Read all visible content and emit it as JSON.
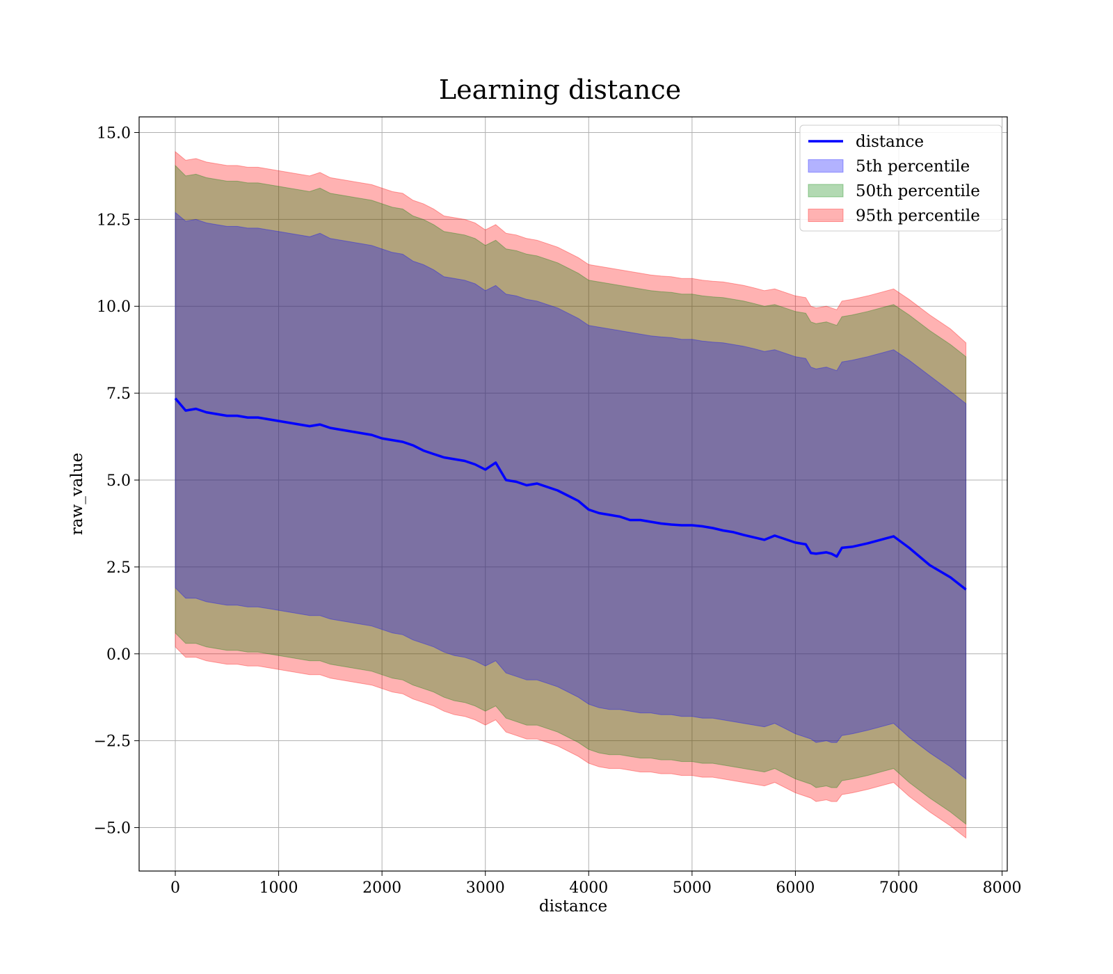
{
  "chart_data": {
    "type": "line",
    "title": "Learning distance",
    "xlabel": "distance",
    "ylabel": "raw_value",
    "xlim": [
      -350,
      8050
    ],
    "ylim": [
      -6.25,
      15.45
    ],
    "xticks": [
      0,
      1000,
      2000,
      3000,
      4000,
      5000,
      6000,
      7000,
      8000
    ],
    "xtick_labels": [
      "0",
      "1000",
      "2000",
      "3000",
      "4000",
      "5000",
      "6000",
      "7000",
      "8000"
    ],
    "yticks": [
      -5.0,
      -2.5,
      0.0,
      2.5,
      5.0,
      7.5,
      10.0,
      12.5,
      15.0
    ],
    "ytick_labels": [
      "−5.0",
      "−2.5",
      "0.0",
      "2.5",
      "5.0",
      "7.5",
      "10.0",
      "12.5",
      "15.0"
    ],
    "grid": true,
    "legend_position": "top-right",
    "x": [
      0,
      100,
      200,
      300,
      400,
      500,
      600,
      700,
      800,
      900,
      1000,
      1100,
      1200,
      1300,
      1400,
      1500,
      1600,
      1700,
      1800,
      1900,
      2000,
      2100,
      2200,
      2300,
      2400,
      2500,
      2600,
      2700,
      2800,
      2900,
      3000,
      3100,
      3200,
      3300,
      3400,
      3500,
      3600,
      3700,
      3800,
      3900,
      4000,
      4100,
      4200,
      4300,
      4400,
      4500,
      4600,
      4700,
      4800,
      4900,
      5000,
      5100,
      5200,
      5300,
      5400,
      5500,
      5600,
      5700,
      5800,
      5900,
      6000,
      6100,
      6150,
      6200,
      6300,
      6350,
      6400,
      6450,
      6550,
      6700,
      6950,
      7100,
      7300,
      7500,
      7650
    ],
    "series": [
      {
        "name": "distance",
        "kind": "line",
        "color": "#0000ff",
        "values": [
          7.35,
          7.0,
          7.05,
          6.95,
          6.9,
          6.85,
          6.85,
          6.8,
          6.8,
          6.75,
          6.7,
          6.65,
          6.6,
          6.55,
          6.6,
          6.5,
          6.45,
          6.4,
          6.35,
          6.3,
          6.2,
          6.15,
          6.1,
          6.0,
          5.85,
          5.75,
          5.65,
          5.6,
          5.55,
          5.45,
          5.3,
          5.5,
          5.0,
          4.95,
          4.85,
          4.9,
          4.8,
          4.7,
          4.55,
          4.4,
          4.15,
          4.05,
          4.0,
          3.95,
          3.85,
          3.85,
          3.8,
          3.75,
          3.72,
          3.7,
          3.7,
          3.67,
          3.62,
          3.55,
          3.5,
          3.42,
          3.35,
          3.28,
          3.4,
          3.3,
          3.2,
          3.15,
          2.9,
          2.88,
          2.92,
          2.88,
          2.8,
          3.05,
          3.08,
          3.18,
          3.38,
          3.05,
          2.55,
          2.2,
          1.85
        ]
      },
      {
        "name": "5th percentile",
        "kind": "band",
        "color": "#0000ff",
        "opacity": 0.3,
        "lower": [
          1.9,
          1.6,
          1.6,
          1.5,
          1.45,
          1.4,
          1.4,
          1.35,
          1.35,
          1.3,
          1.25,
          1.2,
          1.15,
          1.1,
          1.1,
          1.0,
          0.95,
          0.9,
          0.85,
          0.8,
          0.7,
          0.6,
          0.55,
          0.4,
          0.3,
          0.2,
          0.05,
          -0.05,
          -0.1,
          -0.2,
          -0.35,
          -0.2,
          -0.55,
          -0.65,
          -0.75,
          -0.75,
          -0.85,
          -0.95,
          -1.1,
          -1.25,
          -1.45,
          -1.55,
          -1.6,
          -1.6,
          -1.65,
          -1.7,
          -1.7,
          -1.75,
          -1.75,
          -1.8,
          -1.8,
          -1.85,
          -1.85,
          -1.9,
          -1.95,
          -2.0,
          -2.05,
          -2.1,
          -2.0,
          -2.15,
          -2.3,
          -2.4,
          -2.45,
          -2.55,
          -2.5,
          -2.55,
          -2.55,
          -2.35,
          -2.3,
          -2.2,
          -2.0,
          -2.4,
          -2.85,
          -3.25,
          -3.6
        ],
        "upper": [
          12.7,
          12.45,
          12.5,
          12.4,
          12.35,
          12.3,
          12.3,
          12.25,
          12.25,
          12.2,
          12.15,
          12.1,
          12.05,
          12.0,
          12.1,
          11.95,
          11.9,
          11.85,
          11.8,
          11.75,
          11.65,
          11.55,
          11.5,
          11.3,
          11.2,
          11.05,
          10.85,
          10.8,
          10.75,
          10.65,
          10.45,
          10.6,
          10.35,
          10.3,
          10.2,
          10.15,
          10.05,
          9.95,
          9.8,
          9.65,
          9.45,
          9.4,
          9.35,
          9.3,
          9.25,
          9.2,
          9.15,
          9.12,
          9.1,
          9.05,
          9.05,
          9.0,
          8.97,
          8.95,
          8.9,
          8.85,
          8.78,
          8.7,
          8.75,
          8.65,
          8.55,
          8.5,
          8.25,
          8.2,
          8.25,
          8.2,
          8.15,
          8.4,
          8.45,
          8.55,
          8.75,
          8.45,
          8.0,
          7.55,
          7.2
        ]
      },
      {
        "name": "50th percentile",
        "kind": "band",
        "color": "#008000",
        "opacity": 0.3,
        "lower": [
          0.6,
          0.3,
          0.3,
          0.2,
          0.15,
          0.1,
          0.1,
          0.05,
          0.05,
          0.0,
          -0.05,
          -0.1,
          -0.15,
          -0.2,
          -0.2,
          -0.3,
          -0.35,
          -0.4,
          -0.45,
          -0.5,
          -0.6,
          -0.7,
          -0.75,
          -0.9,
          -1.0,
          -1.1,
          -1.25,
          -1.35,
          -1.4,
          -1.5,
          -1.65,
          -1.5,
          -1.85,
          -1.95,
          -2.05,
          -2.05,
          -2.15,
          -2.25,
          -2.4,
          -2.55,
          -2.75,
          -2.85,
          -2.9,
          -2.9,
          -2.95,
          -3.0,
          -3.0,
          -3.05,
          -3.05,
          -3.1,
          -3.1,
          -3.15,
          -3.15,
          -3.2,
          -3.25,
          -3.3,
          -3.35,
          -3.4,
          -3.3,
          -3.45,
          -3.6,
          -3.7,
          -3.75,
          -3.85,
          -3.8,
          -3.85,
          -3.85,
          -3.65,
          -3.6,
          -3.5,
          -3.3,
          -3.7,
          -4.15,
          -4.55,
          -4.9
        ],
        "upper": [
          14.05,
          13.75,
          13.8,
          13.7,
          13.65,
          13.6,
          13.6,
          13.55,
          13.55,
          13.5,
          13.45,
          13.4,
          13.35,
          13.3,
          13.4,
          13.25,
          13.2,
          13.15,
          13.1,
          13.05,
          12.95,
          12.85,
          12.8,
          12.6,
          12.5,
          12.35,
          12.15,
          12.1,
          12.05,
          11.95,
          11.75,
          11.9,
          11.65,
          11.6,
          11.5,
          11.45,
          11.35,
          11.25,
          11.1,
          10.95,
          10.75,
          10.7,
          10.65,
          10.6,
          10.55,
          10.5,
          10.45,
          10.42,
          10.4,
          10.35,
          10.35,
          10.3,
          10.27,
          10.25,
          10.2,
          10.15,
          10.08,
          10.0,
          10.05,
          9.95,
          9.85,
          9.8,
          9.55,
          9.5,
          9.55,
          9.5,
          9.45,
          9.7,
          9.75,
          9.85,
          10.05,
          9.75,
          9.3,
          8.9,
          8.55
        ]
      },
      {
        "name": "95th percentile",
        "kind": "band",
        "color": "#ff0000",
        "opacity": 0.3,
        "lower": [
          0.2,
          -0.1,
          -0.1,
          -0.2,
          -0.25,
          -0.3,
          -0.3,
          -0.35,
          -0.35,
          -0.4,
          -0.45,
          -0.5,
          -0.55,
          -0.6,
          -0.6,
          -0.7,
          -0.75,
          -0.8,
          -0.85,
          -0.9,
          -1.0,
          -1.1,
          -1.15,
          -1.3,
          -1.4,
          -1.5,
          -1.65,
          -1.75,
          -1.8,
          -1.9,
          -2.05,
          -1.9,
          -2.25,
          -2.35,
          -2.45,
          -2.45,
          -2.55,
          -2.65,
          -2.8,
          -2.95,
          -3.15,
          -3.25,
          -3.3,
          -3.3,
          -3.35,
          -3.4,
          -3.4,
          -3.45,
          -3.45,
          -3.5,
          -3.5,
          -3.55,
          -3.55,
          -3.6,
          -3.65,
          -3.7,
          -3.75,
          -3.8,
          -3.7,
          -3.85,
          -4.0,
          -4.1,
          -4.15,
          -4.25,
          -4.2,
          -4.25,
          -4.25,
          -4.05,
          -4.0,
          -3.9,
          -3.7,
          -4.1,
          -4.55,
          -4.95,
          -5.3
        ],
        "upper": [
          14.45,
          14.2,
          14.25,
          14.15,
          14.1,
          14.05,
          14.05,
          14.0,
          14.0,
          13.95,
          13.9,
          13.85,
          13.8,
          13.75,
          13.85,
          13.7,
          13.65,
          13.6,
          13.55,
          13.5,
          13.4,
          13.3,
          13.25,
          13.05,
          12.95,
          12.8,
          12.6,
          12.55,
          12.5,
          12.4,
          12.2,
          12.35,
          12.1,
          12.05,
          11.95,
          11.9,
          11.8,
          11.7,
          11.55,
          11.4,
          11.2,
          11.15,
          11.1,
          11.05,
          11.0,
          10.95,
          10.9,
          10.87,
          10.85,
          10.8,
          10.8,
          10.75,
          10.72,
          10.7,
          10.65,
          10.6,
          10.53,
          10.45,
          10.5,
          10.4,
          10.3,
          10.25,
          10.0,
          9.95,
          10.0,
          9.95,
          9.9,
          10.15,
          10.2,
          10.3,
          10.5,
          10.2,
          9.75,
          9.35,
          8.95
        ]
      }
    ]
  }
}
